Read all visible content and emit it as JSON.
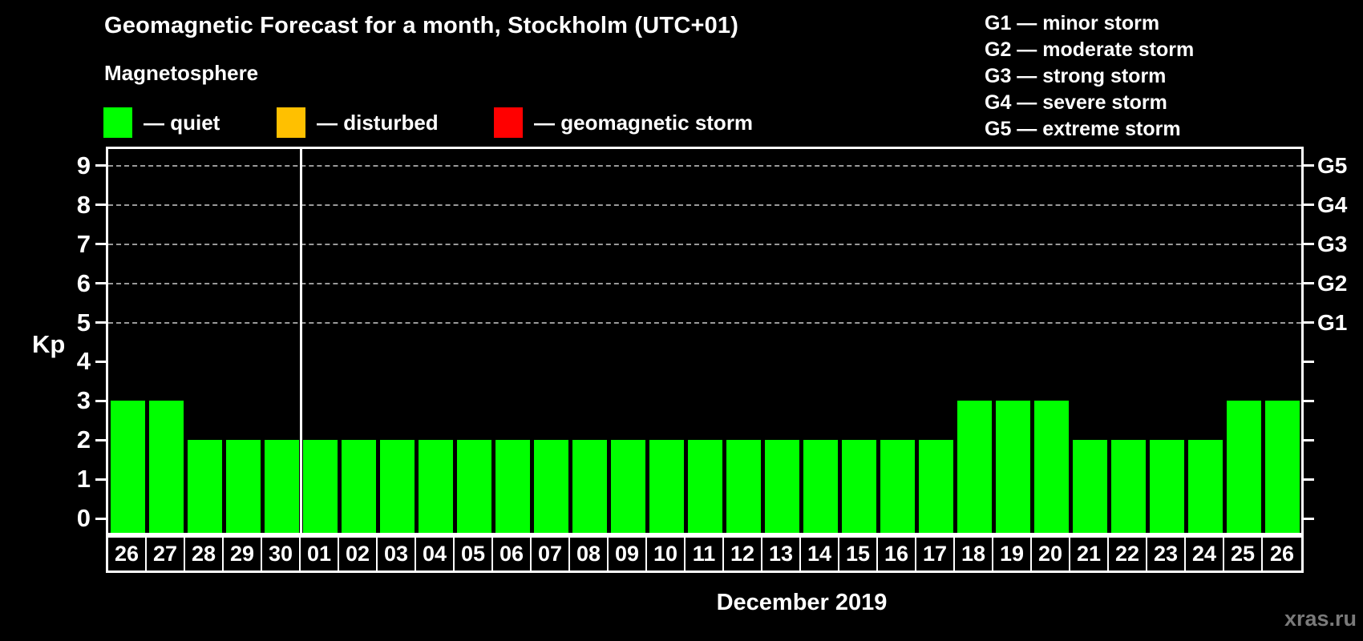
{
  "header": {
    "title": "Geomagnetic Forecast for a month, Stockholm (UTC+01)",
    "subtitle": "Magnetosphere"
  },
  "magnetosphere_legend": [
    {
      "label": "— quiet",
      "color": "#00ff00"
    },
    {
      "label": "— disturbed",
      "color": "#ffc000"
    },
    {
      "label": "— geomagnetic storm",
      "color": "#ff0000"
    }
  ],
  "g_scale_legend": [
    "G1 — minor storm",
    "G2 — moderate storm",
    "G3 — strong storm",
    "G4 — severe storm",
    "G5 — extreme storm"
  ],
  "chart_data": {
    "type": "bar",
    "title": "Geomagnetic Forecast for a month, Stockholm (UTC+01)",
    "ylabel": "Kp",
    "xlabel": "December 2019",
    "ylim": [
      0,
      9
    ],
    "y_ticks": [
      0,
      1,
      2,
      3,
      4,
      5,
      6,
      7,
      8,
      9
    ],
    "gridlines_at_kp": [
      5,
      6,
      7,
      8,
      9
    ],
    "grid": "dashed horizontal lines at G-storm levels only",
    "legend_position": "top-left",
    "right_axis": [
      {
        "kp": 5,
        "label": "G1"
      },
      {
        "kp": 6,
        "label": "G2"
      },
      {
        "kp": 7,
        "label": "G3"
      },
      {
        "kp": 8,
        "label": "G4"
      },
      {
        "kp": 9,
        "label": "G5"
      }
    ],
    "categories": [
      "26",
      "27",
      "28",
      "29",
      "30",
      "01",
      "02",
      "03",
      "04",
      "05",
      "06",
      "07",
      "08",
      "09",
      "10",
      "11",
      "12",
      "13",
      "14",
      "15",
      "16",
      "17",
      "18",
      "19",
      "20",
      "21",
      "22",
      "23",
      "24",
      "25",
      "26"
    ],
    "values": [
      3,
      3,
      2,
      2,
      2,
      2,
      2,
      2,
      2,
      2,
      2,
      2,
      2,
      2,
      2,
      2,
      2,
      2,
      2,
      2,
      2,
      2,
      3,
      3,
      3,
      2,
      2,
      2,
      2,
      3,
      3
    ],
    "bar_color": "#00ff00",
    "month_divider_after_index": 4
  },
  "watermark": "xras.ru"
}
